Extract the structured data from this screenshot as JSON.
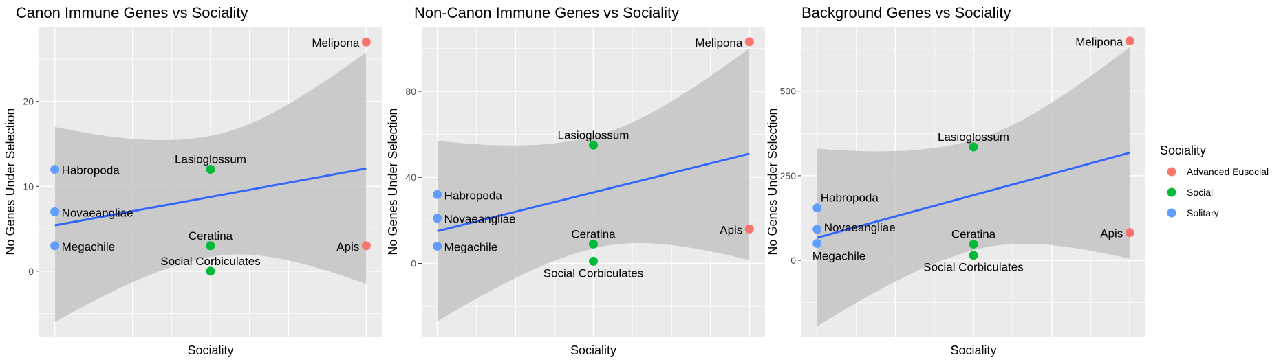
{
  "chart_data": [
    {
      "type": "scatter",
      "title": "Canon Immune Genes vs Sociality",
      "xlabel": "Sociality",
      "ylabel": "No Genes Under Selection",
      "yticks": [
        "0",
        "10",
        "20"
      ],
      "ylim": [
        -7.7,
        28.8
      ],
      "smooth": {
        "method": "linear",
        "confidence_band": true,
        "x": [
          1,
          3
        ],
        "fit": [
          5.4,
          12.1
        ],
        "lower": [
          -6.0,
          -1.5
        ],
        "upper": [
          17.0,
          25.8
        ]
      },
      "points": [
        {
          "label": "Habropoda",
          "x": 1,
          "y": 12,
          "group": "Solitary"
        },
        {
          "label": "Novaeangliae",
          "x": 1,
          "y": 7,
          "group": "Solitary"
        },
        {
          "label": "Megachile",
          "x": 1,
          "y": 3,
          "group": "Solitary"
        },
        {
          "label": "Lasioglossum",
          "x": 2,
          "y": 12,
          "group": "Social"
        },
        {
          "label": "Ceratina",
          "x": 2,
          "y": 3,
          "group": "Social"
        },
        {
          "label": "Social Corbiculates",
          "x": 2,
          "y": 0,
          "group": "Social"
        },
        {
          "label": "Melipona",
          "x": 3,
          "y": 27,
          "group": "Advanced Eusocial"
        },
        {
          "label": "Apis",
          "x": 3,
          "y": 3,
          "group": "Advanced Eusocial"
        }
      ]
    },
    {
      "type": "scatter",
      "title": "Non-Canon Immune Genes vs Sociality",
      "xlabel": "Sociality",
      "ylabel": "No Genes Under Selection",
      "yticks": [
        "0",
        "40",
        "80"
      ],
      "ylim": [
        -34,
        110
      ],
      "smooth": {
        "method": "linear",
        "confidence_band": true,
        "x": [
          1,
          3
        ],
        "fit": [
          15,
          51
        ],
        "lower": [
          -27,
          1.5
        ],
        "upper": [
          57,
          100
        ]
      },
      "points": [
        {
          "label": "Habropoda",
          "x": 1,
          "y": 32,
          "group": "Solitary"
        },
        {
          "label": "Novaeangliae",
          "x": 1,
          "y": 21,
          "group": "Solitary"
        },
        {
          "label": "Megachile",
          "x": 1,
          "y": 8,
          "group": "Solitary"
        },
        {
          "label": "Lasioglossum",
          "x": 2,
          "y": 55,
          "group": "Social"
        },
        {
          "label": "Ceratina",
          "x": 2,
          "y": 9,
          "group": "Social"
        },
        {
          "label": "Social Corbiculates",
          "x": 2,
          "y": 1,
          "group": "Social"
        },
        {
          "label": "Melipona",
          "x": 3,
          "y": 103,
          "group": "Advanced Eusocial"
        },
        {
          "label": "Apis",
          "x": 3,
          "y": 16,
          "group": "Advanced Eusocial"
        }
      ]
    },
    {
      "type": "scatter",
      "title": "Background Genes vs Sociality",
      "xlabel": "Sociality",
      "ylabel": "No Genes Under Selection",
      "yticks": [
        "0",
        "250",
        "500"
      ],
      "ylim": [
        -225,
        690
      ],
      "smooth": {
        "method": "linear",
        "confidence_band": true,
        "x": [
          1,
          3
        ],
        "fit": [
          67,
          318
        ],
        "lower": [
          -195,
          5
        ],
        "upper": [
          330,
          630
        ]
      },
      "points": [
        {
          "label": "Habropoda",
          "x": 1,
          "y": 155,
          "group": "Solitary"
        },
        {
          "label": "Novaeangliae",
          "x": 1,
          "y": 92,
          "group": "Solitary"
        },
        {
          "label": "Megachile",
          "x": 1,
          "y": 50,
          "group": "Solitary"
        },
        {
          "label": "Lasioglossum",
          "x": 2,
          "y": 335,
          "group": "Social"
        },
        {
          "label": "Ceratina",
          "x": 2,
          "y": 48,
          "group": "Social"
        },
        {
          "label": "Social Corbiculates",
          "x": 2,
          "y": 15,
          "group": "Social"
        },
        {
          "label": "Melipona",
          "x": 3,
          "y": 648,
          "group": "Advanced Eusocial"
        },
        {
          "label": "Apis",
          "x": 3,
          "y": 82,
          "group": "Advanced Eusocial"
        }
      ]
    }
  ],
  "legend": {
    "title": "Sociality",
    "position": "right",
    "items": [
      {
        "label": "Advanced Eusocial",
        "color": "#f8766d"
      },
      {
        "label": "Social",
        "color": "#00ba38"
      },
      {
        "label": "Solitary",
        "color": "#619cff"
      }
    ]
  },
  "style": {
    "panel_background": "#ebebeb",
    "grid_color": "#ffffff",
    "band_color": "#c4c4c4",
    "line_color": "#3366ff",
    "point_colors": {
      "Advanced Eusocial": "#f8766d",
      "Social": "#00ba38",
      "Solitary": "#619cff"
    }
  }
}
